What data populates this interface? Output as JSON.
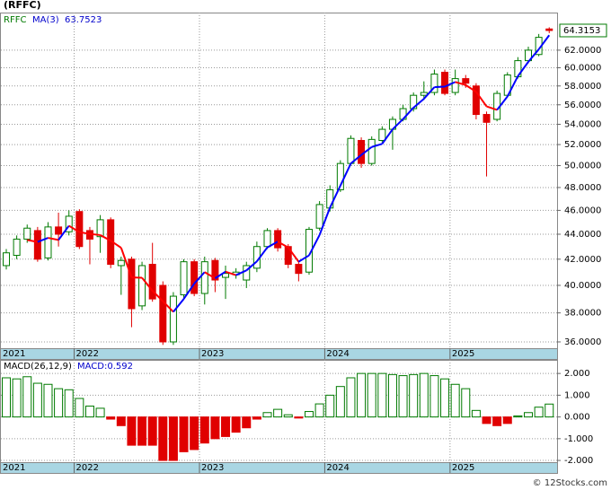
{
  "chart_data": [
    {
      "type": "candlestick",
      "title": "(RFFC)",
      "name": "RFFC",
      "open": [
        41.5,
        42.3,
        43.6,
        44.3,
        42.1,
        44.6,
        44.2,
        45.9,
        44.3,
        43.8,
        45.2,
        41.5,
        42.0,
        38.5,
        41.6,
        40.0,
        36.0,
        39.3,
        41.8,
        39.4,
        41.9,
        40.6,
        40.8,
        40.4,
        41.3,
        43.0,
        44.3,
        43.0,
        41.6,
        41.0,
        44.5,
        46.2,
        47.8,
        50.2,
        52.4,
        50.2,
        52.4,
        53.5,
        54.5,
        55.6,
        57.0,
        57.3,
        59.5,
        57.3,
        58.8,
        58.0,
        55.0,
        54.5,
        57.0,
        59.0,
        60.8,
        61.5,
        64.5
      ],
      "high": [
        42.8,
        43.9,
        44.8,
        44.6,
        45.0,
        45.8,
        46.0,
        46.1,
        44.6,
        45.6,
        45.4,
        42.2,
        42.2,
        41.8,
        43.3,
        40.3,
        39.5,
        42.0,
        42.0,
        42.2,
        42.1,
        41.5,
        41.3,
        41.8,
        43.4,
        44.5,
        44.5,
        43.2,
        41.8,
        44.6,
        46.8,
        48.2,
        50.5,
        52.9,
        52.7,
        52.8,
        53.8,
        54.8,
        56.0,
        57.3,
        58.5,
        59.8,
        59.8,
        59.8,
        59.2,
        58.3,
        55.3,
        57.5,
        59.5,
        61.2,
        62.4,
        63.9,
        64.7
      ],
      "low": [
        41.2,
        42.0,
        43.3,
        41.8,
        41.9,
        43.0,
        43.9,
        42.8,
        41.6,
        42.5,
        41.3,
        39.3,
        37.0,
        38.2,
        38.8,
        35.8,
        35.8,
        39.0,
        39.2,
        38.6,
        39.5,
        39.0,
        40.5,
        39.8,
        41.0,
        42.8,
        42.6,
        41.3,
        40.3,
        40.8,
        44.3,
        45.9,
        47.6,
        50.0,
        49.8,
        50.0,
        52.2,
        51.5,
        54.3,
        55.3,
        56.5,
        57.0,
        57.0,
        57.0,
        57.8,
        54.5,
        49.0,
        54.3,
        56.8,
        58.8,
        60.5,
        61.3,
        64.0
      ],
      "close": [
        42.5,
        43.6,
        44.5,
        42.0,
        44.6,
        44.0,
        45.5,
        43.0,
        43.6,
        45.2,
        41.6,
        41.9,
        38.3,
        41.5,
        39.0,
        36.0,
        39.2,
        41.8,
        39.4,
        41.8,
        40.4,
        40.9,
        41.0,
        41.5,
        43.0,
        44.3,
        42.9,
        41.6,
        40.9,
        44.4,
        46.5,
        47.8,
        50.2,
        52.6,
        50.2,
        52.5,
        53.5,
        54.5,
        55.6,
        57.0,
        57.3,
        59.3,
        57.2,
        58.8,
        58.3,
        55.0,
        54.2,
        57.2,
        59.2,
        60.8,
        62.0,
        63.5,
        64.3153
      ],
      "ma": {
        "name": "MA(3)",
        "values": [
          null,
          null,
          43.53,
          43.37,
          43.7,
          43.53,
          44.7,
          44.17,
          44.03,
          43.93,
          43.47,
          42.9,
          40.6,
          40.57,
          39.6,
          38.83,
          38.07,
          39.0,
          40.13,
          41.0,
          40.53,
          41.03,
          40.77,
          41.13,
          41.83,
          42.93,
          43.4,
          42.93,
          41.8,
          42.3,
          43.93,
          46.23,
          48.17,
          50.2,
          51.0,
          51.77,
          52.07,
          53.5,
          54.53,
          55.7,
          56.63,
          57.87,
          57.93,
          58.43,
          58.1,
          57.37,
          55.83,
          55.47,
          56.87,
          59.07,
          60.67,
          62.1,
          63.7523
        ],
        "up_color": "#0000ff",
        "down_color": "#ff0000"
      },
      "up_color": "#007a00",
      "down_color": "#e00000",
      "log": true,
      "grid": true,
      "ylim": [
        35.58,
        66.5
      ],
      "yticks": [
        {
          "value": 36,
          "label": "36.0000"
        },
        {
          "value": 38,
          "label": "38.0000"
        },
        {
          "value": 40,
          "label": "40.0000"
        },
        {
          "value": 42,
          "label": "42.0000"
        },
        {
          "value": 44,
          "label": "44.0000"
        },
        {
          "value": 46,
          "label": "46.0000"
        },
        {
          "value": 48,
          "label": "48.0000"
        },
        {
          "value": 50,
          "label": "50.0000"
        },
        {
          "value": 52,
          "label": "52.0000"
        },
        {
          "value": 54,
          "label": "54.0000"
        },
        {
          "value": 56,
          "label": "56.0000"
        },
        {
          "value": 58,
          "label": "58.0000"
        },
        {
          "value": 60,
          "label": "60.0000"
        },
        {
          "value": 62,
          "label": "62.0000"
        }
      ],
      "xticks": [
        {
          "value": -5,
          "label": "2021"
        },
        {
          "value": 7,
          "label": "2022"
        },
        {
          "value": 19,
          "label": "2023"
        },
        {
          "value": 31,
          "label": "2024"
        },
        {
          "value": 43,
          "label": "2025"
        }
      ]
    },
    {
      "type": "bar",
      "title": "MACD(26,12,9)",
      "readout": "MACD:0.592",
      "values": [
        1.8,
        1.75,
        1.85,
        1.55,
        1.5,
        1.3,
        1.25,
        0.85,
        0.5,
        0.4,
        -0.1,
        -0.4,
        -1.3,
        -1.3,
        -1.3,
        -2.0,
        -2.0,
        -1.6,
        -1.5,
        -1.2,
        -1.0,
        -0.9,
        -0.7,
        -0.5,
        -0.1,
        0.2,
        0.35,
        0.1,
        -0.05,
        0.25,
        0.6,
        1.0,
        1.4,
        1.8,
        2.0,
        2.0,
        2.0,
        1.95,
        1.9,
        1.95,
        2.0,
        1.9,
        1.75,
        1.5,
        1.3,
        0.3,
        -0.3,
        -0.4,
        -0.3,
        0.05,
        0.2,
        0.45,
        0.592
      ],
      "up_color": "#007a00",
      "down_color": "#e00000",
      "grid": true,
      "ylim": [
        -2.08,
        2.625
      ],
      "yticks": [
        {
          "value": -2,
          "label": "-2.000"
        },
        {
          "value": -1,
          "label": "-1.000"
        },
        {
          "value": 0,
          "label": "0.000"
        },
        {
          "value": 1,
          "label": "1.000"
        },
        {
          "value": 2,
          "label": "2.000"
        }
      ],
      "xticks": [
        {
          "value": -5,
          "label": "2021"
        },
        {
          "value": 7,
          "label": "2022"
        },
        {
          "value": 19,
          "label": "2023"
        },
        {
          "value": 31,
          "label": "2024"
        },
        {
          "value": 43,
          "label": "2025"
        }
      ]
    }
  ],
  "footer": "© 12Stocks.com"
}
